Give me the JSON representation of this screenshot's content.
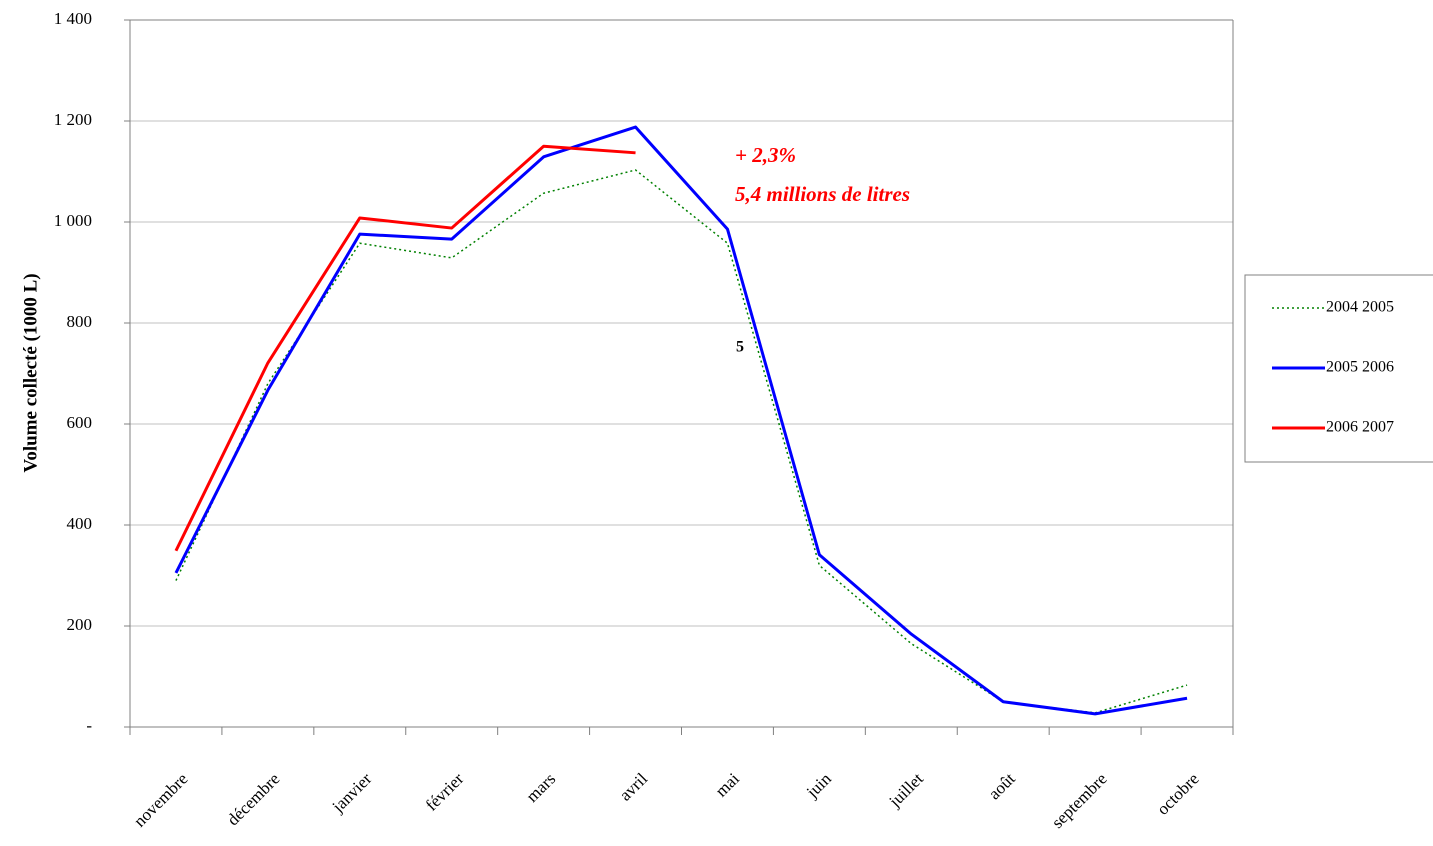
{
  "chart_data": {
    "type": "line",
    "y_label": "Volume collecté (1000 L)",
    "categories": [
      "novembre",
      "décembre",
      "janvier",
      "février",
      "mars",
      "avril",
      "mai",
      "juin",
      "juillet",
      "août",
      "septembre",
      "octobre"
    ],
    "series": [
      {
        "name": "2004 2005",
        "color": "#008000",
        "style": "dotted",
        "values": [
          290,
          680,
          958,
          929,
          1057,
          1103,
          958,
          320,
          165,
          50,
          28,
          83
        ]
      },
      {
        "name": "2005 2006",
        "color": "#0000ff",
        "style": "solid",
        "values": [
          305,
          667,
          976,
          966,
          1129,
          1188,
          986,
          341,
          184,
          50,
          26,
          57
        ]
      },
      {
        "name": "2006 2007",
        "color": "#ff0000",
        "style": "solid",
        "values": [
          349,
          721,
          1008,
          988,
          1150,
          1137,
          null,
          null,
          null,
          null,
          null,
          null
        ]
      }
    ],
    "annotations": [
      "+ 2,3%",
      "5,4 millions de litres",
      "5"
    ],
    "ylim": [
      0,
      1400
    ],
    "yticks": [
      {
        "value": 0,
        "label": "-"
      },
      200,
      400,
      600,
      800,
      {
        "value": 1000,
        "label": "1 000"
      },
      {
        "value": 1200,
        "label": "1 200"
      },
      {
        "value": 1400,
        "label": "1 400"
      }
    ],
    "grid": true,
    "legend": "right"
  }
}
